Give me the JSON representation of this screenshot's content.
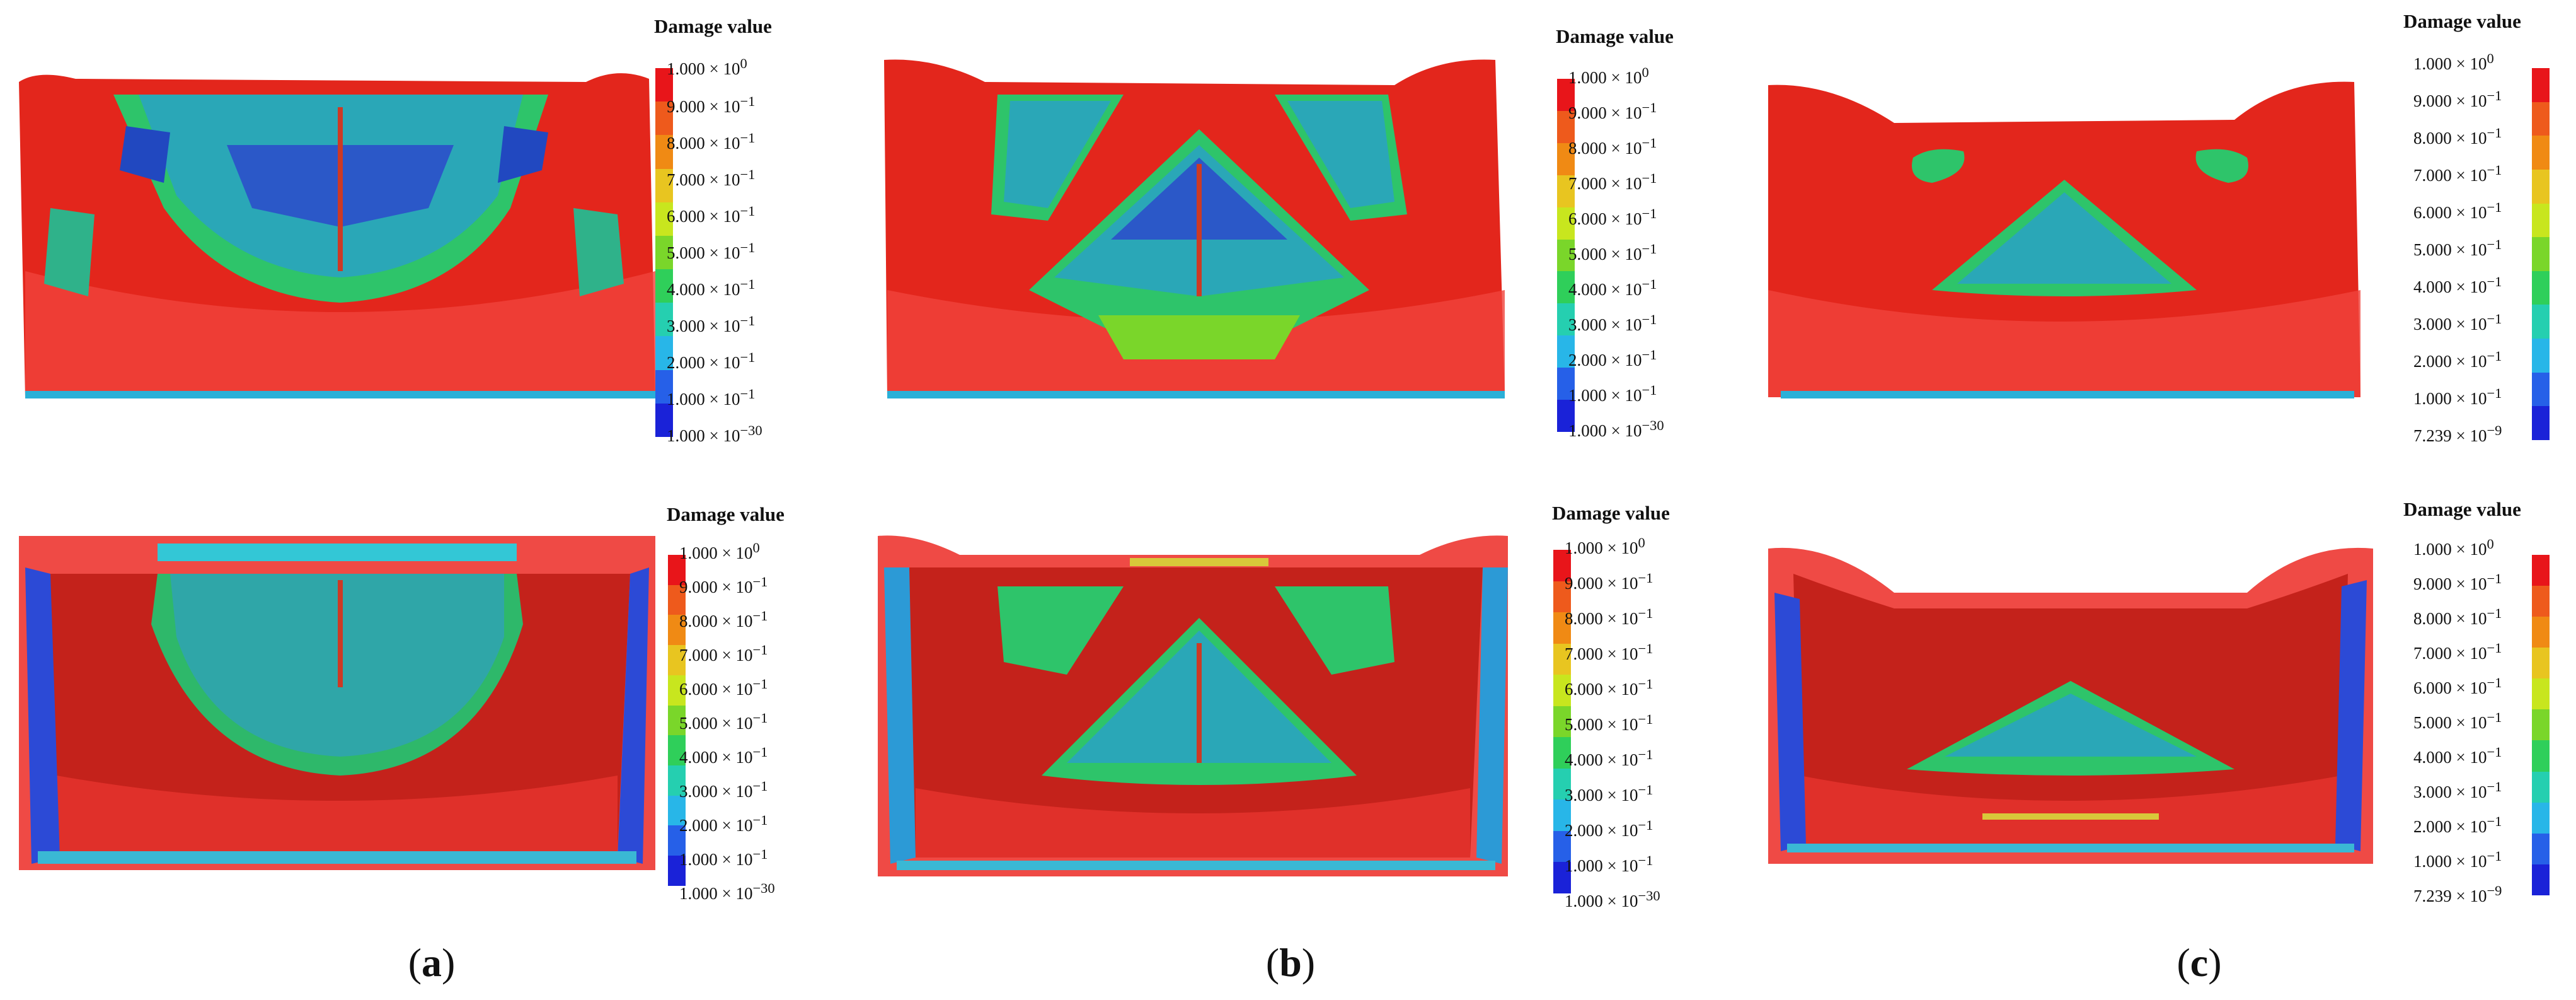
{
  "legend": {
    "title": "Damage value",
    "colors": [
      "#e8151a",
      "#ee5a1c",
      "#f08a14",
      "#e8c520",
      "#c8e61e",
      "#7ad62a",
      "#2fcf5a",
      "#25cfb0",
      "#28b6e8",
      "#2660e8",
      "#1a22d8"
    ]
  },
  "panels": [
    {
      "id": "a",
      "ticks": {
        "t0": "1.000 × 10",
        "t0e": "0",
        "t1": "9.000 × 10",
        "t1e": "−1",
        "t2": "8.000 × 10",
        "t2e": "−1",
        "t3": "7.000 × 10",
        "t3e": "−1",
        "t4": "6.000 × 10",
        "t4e": "−1",
        "t5": "5.000 × 10",
        "t5e": "−1",
        "t6": "4.000 × 10",
        "t6e": "−1",
        "t7": "3.000 × 10",
        "t7e": "−1",
        "t8": "2.000 × 10",
        "t8e": "−1",
        "t9": "1.000 × 10",
        "t9e": "−1",
        "t10": "1.000 × 10",
        "t10e": "−30"
      },
      "caption": "a"
    },
    {
      "id": "b",
      "ticks": {
        "t0": "1.000 × 10",
        "t0e": "0",
        "t1": "9.000 × 10",
        "t1e": "−1",
        "t2": "8.000 × 10",
        "t2e": "−1",
        "t3": "7.000 × 10",
        "t3e": "−1",
        "t4": "6.000 × 10",
        "t4e": "−1",
        "t5": "5.000 × 10",
        "t5e": "−1",
        "t6": "4.000 × 10",
        "t6e": "−1",
        "t7": "3.000 × 10",
        "t7e": "−1",
        "t8": "2.000 × 10",
        "t8e": "−1",
        "t9": "1.000 × 10",
        "t9e": "−1",
        "t10": "1.000 × 10",
        "t10e": "−30"
      },
      "caption": "b"
    },
    {
      "id": "c",
      "ticks": {
        "t0": "1.000 × 10",
        "t0e": "0",
        "t1": "9.000 × 10",
        "t1e": "−1",
        "t2": "8.000 × 10",
        "t2e": "−1",
        "t3": "7.000 × 10",
        "t3e": "−1",
        "t4": "6.000 × 10",
        "t4e": "−1",
        "t5": "5.000 × 10",
        "t5e": "−1",
        "t6": "4.000 × 10",
        "t6e": "−1",
        "t7": "3.000 × 10",
        "t7e": "−1",
        "t8": "2.000 × 10",
        "t8e": "−1",
        "t9": "1.000 × 10",
        "t9e": "−1",
        "t10": "7.239 × 10",
        "t10e": "−9"
      },
      "caption": "c"
    }
  ]
}
